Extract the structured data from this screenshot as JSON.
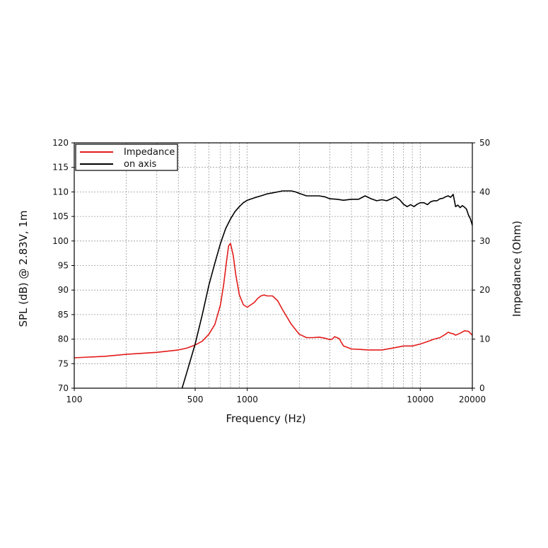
{
  "chart_data": {
    "type": "line",
    "xlabel": "Frequency (Hz)",
    "ylabel_left": "SPL (dB) @ 2.83V, 1m",
    "ylabel_right": "Impedance (Ohm)",
    "x_scale": "log",
    "xlim": [
      100,
      20000
    ],
    "ylim_left": [
      70,
      120
    ],
    "ylim_right": [
      0,
      50
    ],
    "x_tick_labels": [
      "100",
      "500",
      "1000",
      "10000",
      "20000"
    ],
    "x_tick_values": [
      100,
      500,
      1000,
      10000,
      20000
    ],
    "y_left_ticks": [
      "70",
      "75",
      "80",
      "85",
      "90",
      "95",
      "100",
      "105",
      "110",
      "115",
      "120"
    ],
    "y_right_ticks": [
      "0",
      "10",
      "20",
      "30",
      "40",
      "50"
    ],
    "grid": true,
    "legend_position": "top-left",
    "series": [
      {
        "name": "Impedance",
        "axis": "right",
        "color": "#e31b1b",
        "x": [
          100,
          150,
          200,
          300,
          400,
          450,
          500,
          550,
          600,
          650,
          700,
          730,
          760,
          780,
          800,
          830,
          860,
          900,
          950,
          1000,
          1050,
          1100,
          1150,
          1200,
          1250,
          1300,
          1400,
          1500,
          1600,
          1800,
          2000,
          2200,
          2400,
          2600,
          2800,
          3000,
          3100,
          3200,
          3400,
          3600,
          4000,
          4500,
          5000,
          5500,
          6000,
          7000,
          7500,
          8000,
          9000,
          10000,
          11000,
          12000,
          13000,
          14000,
          14500,
          15000,
          15500,
          16000,
          17000,
          18000,
          19000,
          20000
        ],
        "y": [
          6.2,
          6.5,
          6.9,
          7.3,
          7.8,
          8.2,
          8.8,
          9.6,
          11,
          13,
          17,
          21,
          26,
          29,
          29.5,
          27,
          23,
          19,
          17,
          16.5,
          17,
          17.5,
          18.3,
          18.8,
          19,
          18.8,
          18.8,
          17.8,
          16,
          13,
          11,
          10.3,
          10.3,
          10.4,
          10.2,
          9.9,
          10,
          10.5,
          10.1,
          8.6,
          8,
          7.9,
          7.8,
          7.8,
          7.8,
          8.2,
          8.4,
          8.6,
          8.6,
          9,
          9.5,
          10,
          10.3,
          11,
          11.4,
          11.2,
          11.1,
          10.8,
          11.2,
          11.7,
          11.6,
          10.8
        ]
      },
      {
        "name": "on axis",
        "axis": "left",
        "color": "#000000",
        "x": [
          420,
          450,
          500,
          550,
          600,
          650,
          700,
          750,
          800,
          850,
          900,
          950,
          1000,
          1100,
          1200,
          1300,
          1400,
          1500,
          1600,
          1700,
          1800,
          1900,
          2000,
          2200,
          2400,
          2600,
          2800,
          3000,
          3300,
          3600,
          4000,
          4400,
          4800,
          5200,
          5600,
          6000,
          6400,
          6800,
          7200,
          7600,
          8000,
          8400,
          8800,
          9200,
          9600,
          10000,
          10500,
          11000,
          11500,
          12000,
          12500,
          13000,
          13500,
          14000,
          14500,
          15000,
          15500,
          16000,
          16500,
          17000,
          17500,
          18000,
          18500,
          19000,
          19500,
          20000
        ],
        "y": [
          70,
          73.5,
          79,
          85,
          91,
          95.5,
          99.5,
          102.5,
          104.5,
          106,
          107,
          107.8,
          108.3,
          108.8,
          109.2,
          109.6,
          109.8,
          110,
          110.2,
          110.2,
          110.2,
          110,
          109.7,
          109.2,
          109.2,
          109.2,
          109,
          108.6,
          108.5,
          108.3,
          108.5,
          108.5,
          109.2,
          108.6,
          108.2,
          108.4,
          108.2,
          108.6,
          109,
          108.4,
          107.5,
          107,
          107.4,
          107,
          107.5,
          107.8,
          107.8,
          107.4,
          108,
          108.2,
          108.2,
          108.6,
          108.7,
          109,
          109.2,
          108.9,
          109.5,
          107,
          107.3,
          106.8,
          107.2,
          106.9,
          106.5,
          105.3,
          104.5,
          103.2
        ]
      }
    ]
  }
}
